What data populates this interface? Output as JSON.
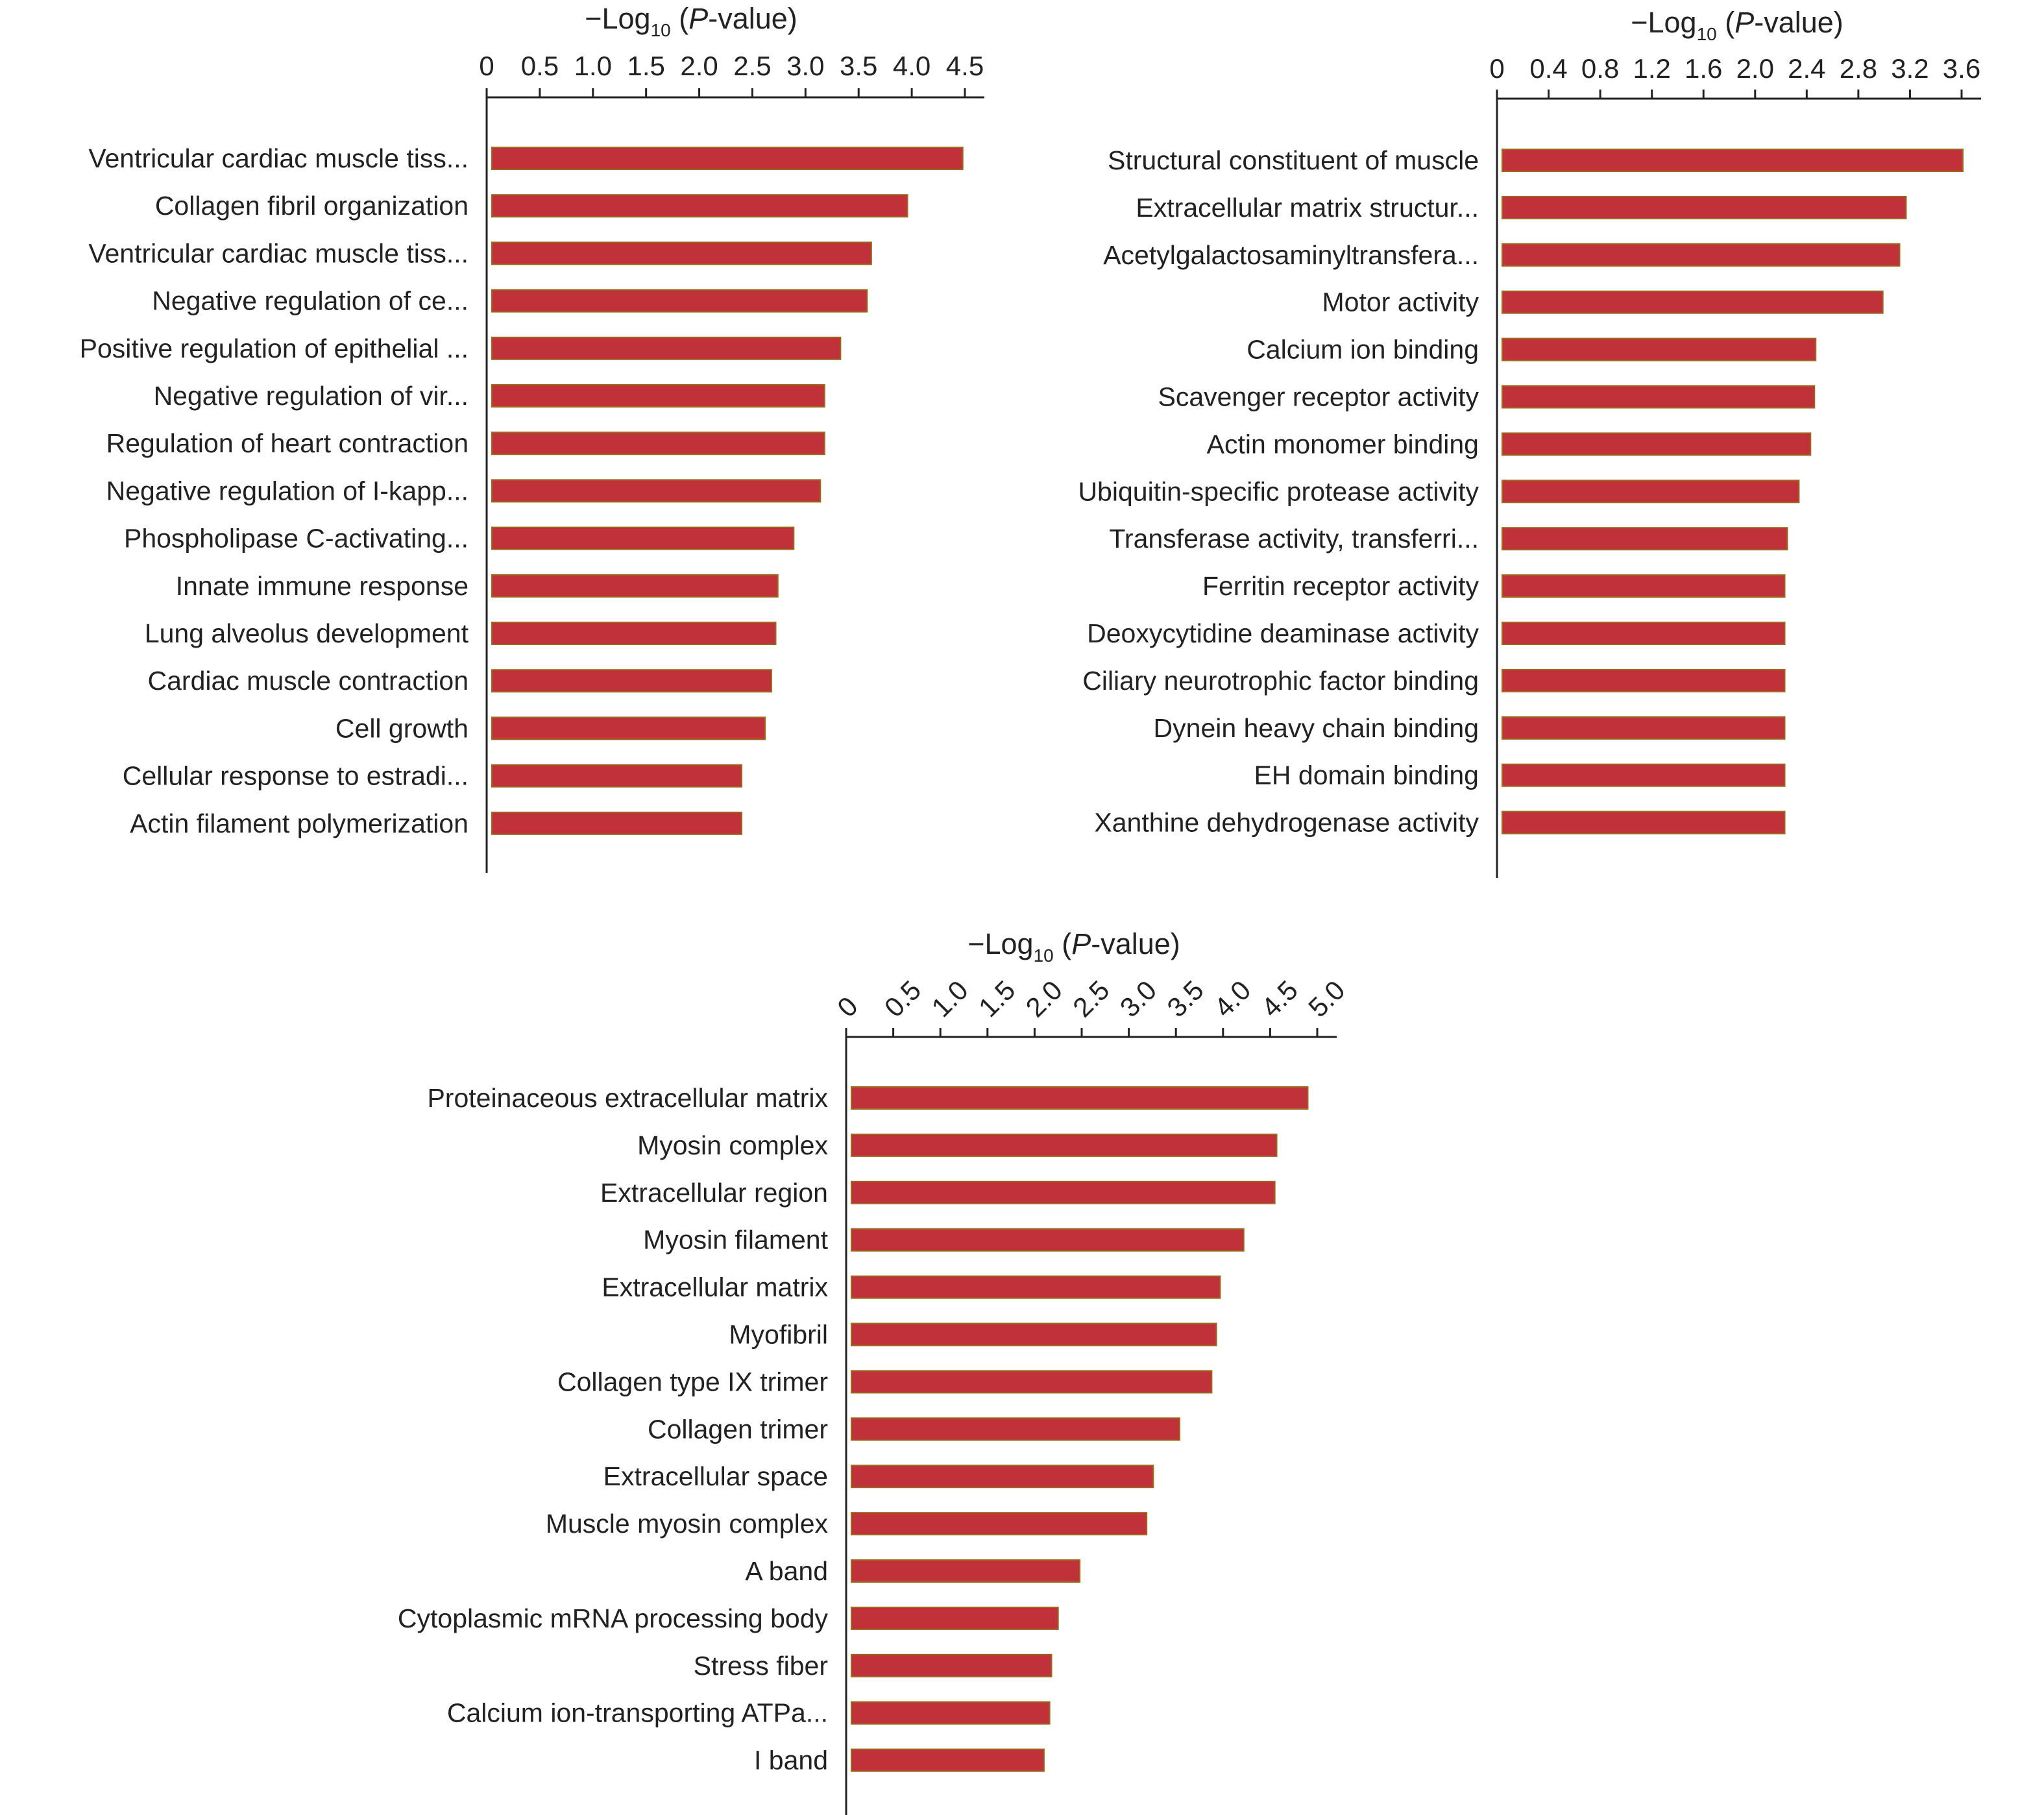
{
  "colors": {
    "bar": "#c0313a",
    "bar_edge": "#9a6a1e",
    "axis": "#222222"
  },
  "chart_data": [
    {
      "type": "bar",
      "orientation": "horizontal",
      "xlabel": {
        "prefix": "−Log",
        "sub": "10",
        "open": " (",
        "italic": "P",
        "rest": "-value)"
      },
      "xlim": [
        0,
        4.5
      ],
      "ticks": [
        "0",
        "0.5",
        "1.0",
        "1.5",
        "2.0",
        "2.5",
        "3.0",
        "3.5",
        "4.0",
        "4.5"
      ],
      "tick_values": [
        0,
        0.5,
        1.0,
        1.5,
        2.0,
        2.5,
        3.0,
        3.5,
        4.0,
        4.5
      ],
      "categories": [
        "Ventricular cardiac muscle tiss...",
        "Collagen fibril organization",
        "Ventricular cardiac muscle tiss...",
        "Negative regulation of ce...",
        "Positive regulation of epithelial ...",
        "Negative regulation of vir...",
        "Regulation of heart contraction",
        "Negative regulation of I-kapp...",
        "Phospholipase C-activating...",
        "Innate immune response",
        "Lung alveolus development",
        "Cardiac muscle contraction",
        "Cell growth",
        "Cellular response to estradi...",
        "Actin filament polymerization"
      ],
      "values": [
        4.48,
        3.96,
        3.62,
        3.58,
        3.33,
        3.18,
        3.18,
        3.14,
        2.89,
        2.74,
        2.72,
        2.68,
        2.62,
        2.4,
        2.4
      ]
    },
    {
      "type": "bar",
      "orientation": "horizontal",
      "xlabel": {
        "prefix": "−Log",
        "sub": "10",
        "open": " (",
        "italic": "P",
        "rest": "-value)"
      },
      "xlim": [
        0,
        3.6
      ],
      "ticks": [
        "0",
        "0.4",
        "0.8",
        "1.2",
        "1.6",
        "2.0",
        "2.4",
        "2.8",
        "3.2",
        "3.6"
      ],
      "tick_values": [
        0,
        0.4,
        0.8,
        1.2,
        1.6,
        2.0,
        2.4,
        2.8,
        3.2,
        3.6
      ],
      "categories": [
        "Structural constituent of muscle",
        "Extracellular matrix structur...",
        "Acetylgalactosaminyltransfera...",
        "Motor activity",
        "Calcium ion binding",
        "Scavenger receptor activity",
        "Actin monomer binding",
        "Ubiquitin-specific protease activity",
        "Transferase activity, transferri...",
        "Ferritin receptor activity",
        "Deoxycytidine deaminase activity",
        "Ciliary neurotrophic factor binding",
        "Dynein heavy chain binding",
        "EH domain binding",
        "Xanthine dehydrogenase activity"
      ],
      "values": [
        3.61,
        3.17,
        3.12,
        2.99,
        2.47,
        2.46,
        2.43,
        2.34,
        2.25,
        2.23,
        2.23,
        2.23,
        2.23,
        2.23,
        2.23
      ]
    },
    {
      "type": "bar",
      "orientation": "horizontal",
      "xlabel": {
        "prefix": "−Log",
        "sub": "10",
        "open": " (",
        "italic": "P",
        "rest": "-value)"
      },
      "xlim": [
        0,
        5.0
      ],
      "ticks": [
        "0",
        "0.5",
        "1.0",
        "1.5",
        "2.0",
        "2.5",
        "3.0",
        "3.5",
        "4.0",
        "4.5",
        "5.0"
      ],
      "tick_values": [
        0,
        0.5,
        1.0,
        1.5,
        2.0,
        2.5,
        3.0,
        3.5,
        4.0,
        4.5,
        5.0
      ],
      "categories": [
        "Proteinaceous extracellular matrix",
        "Myosin complex",
        "Extracellular region",
        "Myosin filament",
        "Extracellular matrix",
        "Myofibril",
        "Collagen type IX trimer",
        "Collagen trimer",
        "Extracellular space",
        "Muscle myosin complex",
        "A band",
        "Cytoplasmic mRNA processing body",
        "Stress fiber",
        "Calcium ion-transporting ATPa...",
        "I band"
      ],
      "values": [
        4.9,
        4.57,
        4.55,
        4.22,
        3.97,
        3.93,
        3.88,
        3.54,
        3.26,
        3.19,
        2.48,
        2.25,
        2.18,
        2.16,
        2.1
      ]
    }
  ]
}
